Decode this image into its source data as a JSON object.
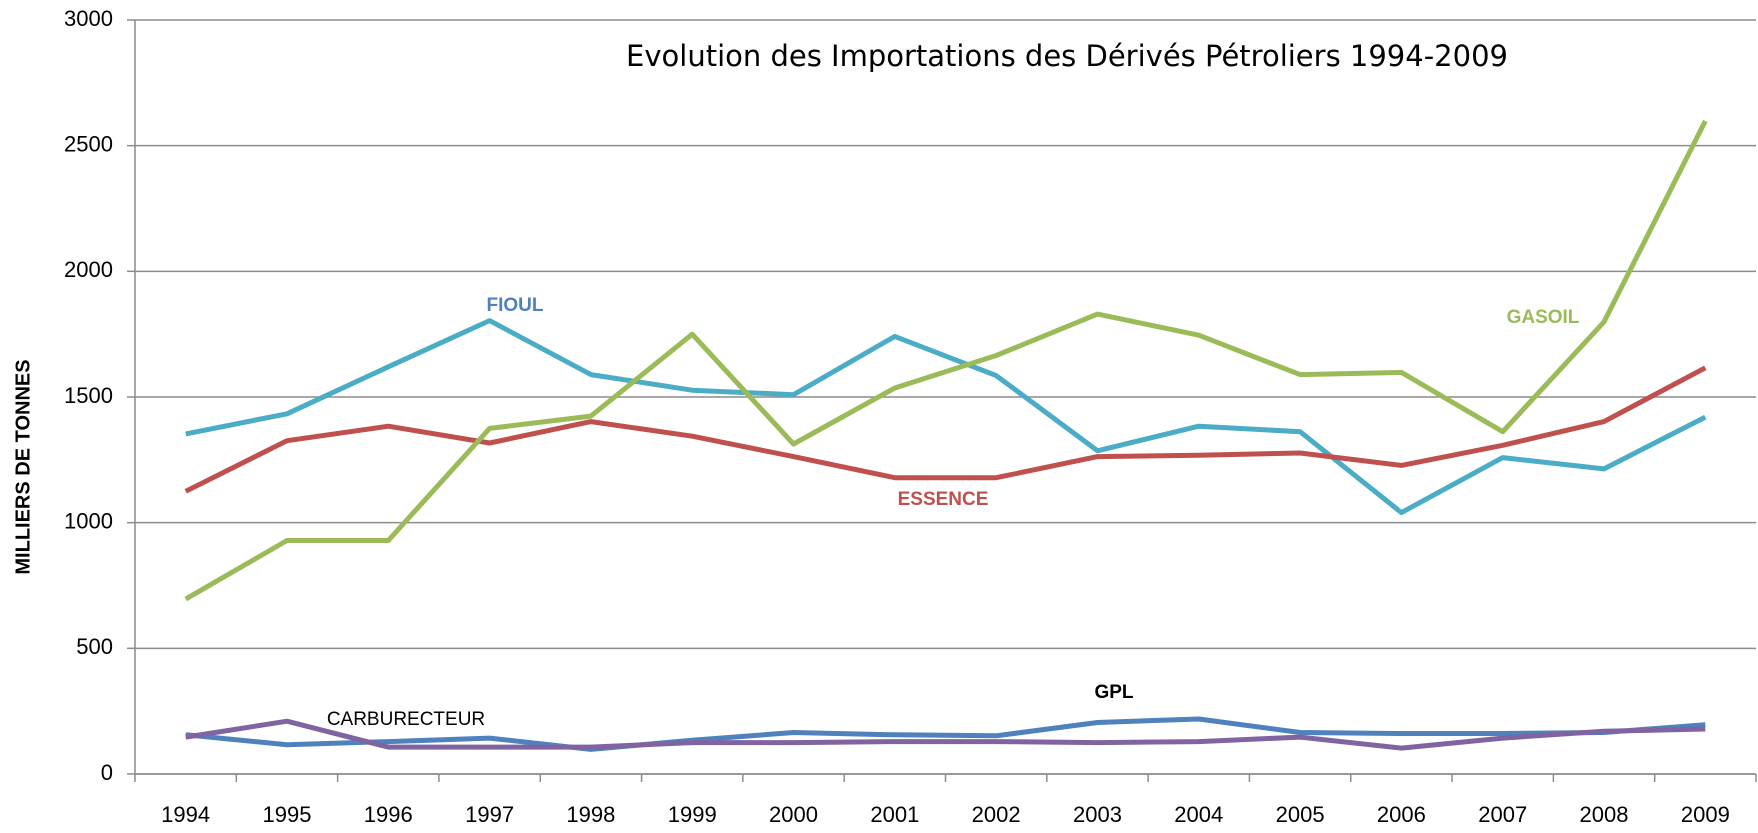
{
  "chart_data": {
    "type": "line",
    "title": "Evolution des Importations des Dérivés Pétroliers 1994-2009",
    "y_label": "MILLIERS DE TONNES",
    "categories": [
      "1994",
      "1995",
      "1996",
      "1997",
      "1998",
      "1999",
      "2000",
      "2001",
      "2002",
      "2003",
      "2004",
      "2005",
      "2006",
      "2007",
      "2008",
      "2009"
    ],
    "series": [
      {
        "name": "FIOUL",
        "color": "#4bacc6",
        "values": [
          1353,
          1433,
          1620,
          1804,
          1589,
          1527,
          1509,
          1741,
          1585,
          1286,
          1384,
          1362,
          1040,
          1259,
          1214,
          1420
        ]
      },
      {
        "name": "ESSENCE",
        "color": "#c0504d",
        "values": [
          1125,
          1326,
          1384,
          1317,
          1402,
          1344,
          1263,
          1179,
          1179,
          1263,
          1268,
          1277,
          1228,
          1308,
          1402,
          1616
        ]
      },
      {
        "name": "GASOIL",
        "color": "#9bbb59",
        "values": [
          696,
          929,
          929,
          1375,
          1424,
          1750,
          1313,
          1536,
          1665,
          1830,
          1746,
          1589,
          1598,
          1362,
          1799,
          2598
        ]
      },
      {
        "name": "GPL",
        "color": "#4f81bd",
        "values": [
          156,
          116,
          129,
          143,
          98,
          134,
          165,
          156,
          152,
          205,
          219,
          165,
          161,
          161,
          165,
          196
        ]
      },
      {
        "name": "CARBURECTEUR",
        "color": "#8064a2",
        "values": [
          147,
          210,
          107,
          107,
          107,
          125,
          125,
          129,
          129,
          125,
          129,
          147,
          103,
          143,
          170,
          179
        ]
      }
    ],
    "ylim": [
      0,
      3000
    ],
    "yticks": [
      0,
      500,
      1000,
      1500,
      2000,
      2500,
      3000
    ],
    "grid": true
  }
}
